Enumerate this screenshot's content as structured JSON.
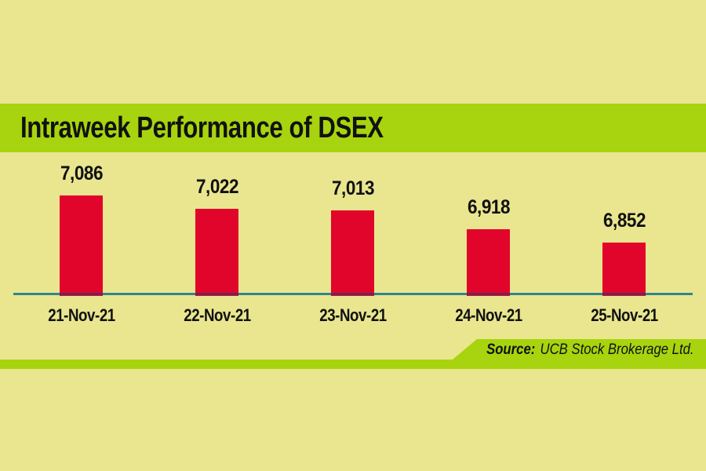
{
  "chart_data": {
    "type": "bar",
    "title": "Intraweek Performance of DSEX",
    "categories": [
      "21-Nov-21",
      "22-Nov-21",
      "23-Nov-21",
      "24-Nov-21",
      "25-Nov-21"
    ],
    "values": [
      7086,
      7022,
      7013,
      6918,
      6852
    ],
    "value_labels": [
      "7,086",
      "7,022",
      "7,013",
      "6,918",
      "6,852"
    ],
    "xlabel": "",
    "ylabel": "",
    "ylim": [
      6600,
      7150
    ],
    "grid": false,
    "legend": "none",
    "axis_labels_position": "below-baseline",
    "value_labels_position": "above-bars"
  },
  "source": {
    "label": "Source:",
    "text": "UCB Stock Brokerage Ltd."
  },
  "colors": {
    "background": "#e9e68f",
    "band_green": "#a7d40e",
    "bar_red": "#e2052b",
    "axis_teal": "#30868d",
    "bar_axis_overlap": "#6e2556",
    "text": "#111111"
  }
}
